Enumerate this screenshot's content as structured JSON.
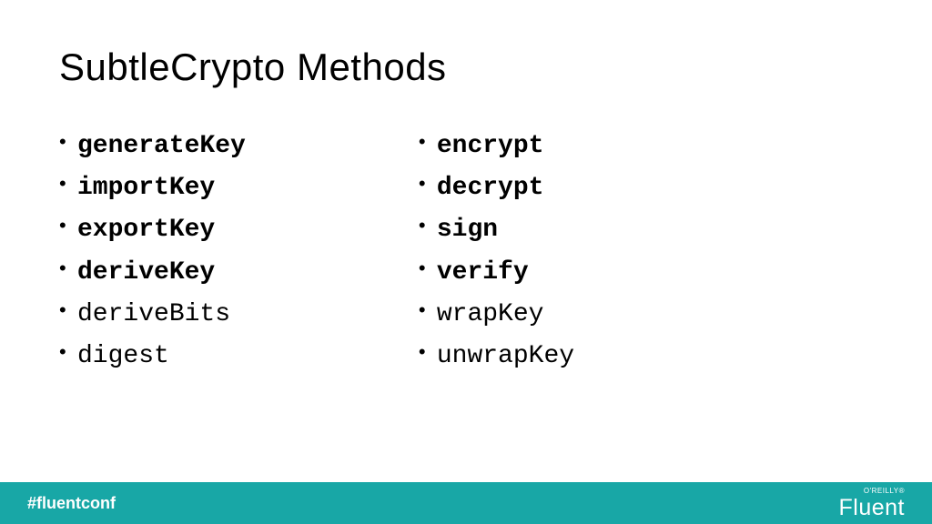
{
  "title": "SubtleCrypto Methods",
  "columns": {
    "left": [
      {
        "text": "generateKey",
        "bold": true
      },
      {
        "text": "importKey",
        "bold": true
      },
      {
        "text": "exportKey",
        "bold": true
      },
      {
        "text": "deriveKey",
        "bold": true
      },
      {
        "text": "deriveBits",
        "bold": false
      },
      {
        "text": "digest",
        "bold": false
      }
    ],
    "right": [
      {
        "text": "encrypt",
        "bold": true
      },
      {
        "text": "decrypt",
        "bold": true
      },
      {
        "text": "sign",
        "bold": true
      },
      {
        "text": "verify",
        "bold": true
      },
      {
        "text": "wrapKey",
        "bold": false
      },
      {
        "text": "unwrapKey",
        "bold": false
      }
    ]
  },
  "footer": {
    "hashtag": "#fluentconf",
    "logo_top": "O'REILLY®",
    "logo_main": "Fluent"
  },
  "style": {
    "background_color": "#ffffff",
    "title_fontsize": 42,
    "title_font": "Segoe UI",
    "item_fontsize": 28,
    "item_font": "Consolas",
    "footer_bg": "#18a7a6",
    "footer_text_color": "#ffffff",
    "text_color": "#000000"
  }
}
